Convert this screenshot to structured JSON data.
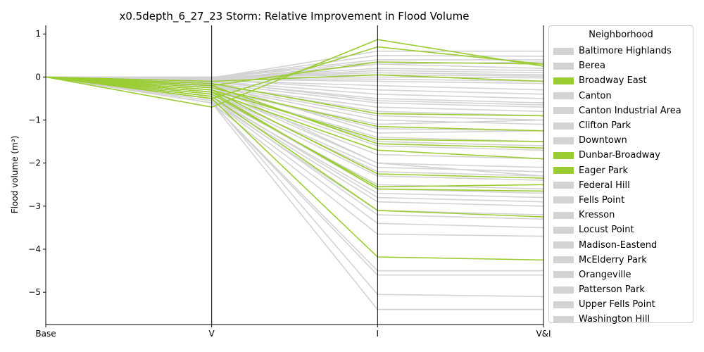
{
  "chart_data": {
    "type": "line",
    "title": "x0.5depth_6_27_23 Storm: Relative Improvement in Flood Volume",
    "ylabel": "Flood volume (m³)",
    "xlabel": "",
    "categories": [
      "Base",
      "V",
      "I",
      "V&I"
    ],
    "ylim": [
      -5.75,
      1.2
    ],
    "yticks": [
      1,
      0,
      -1,
      -2,
      -3,
      -4,
      -5
    ],
    "ytick_labels": [
      "1",
      "0",
      "−1",
      "−2",
      "−3",
      "−4",
      "−5"
    ],
    "grid": false,
    "legend": {
      "title": "Neighborhood",
      "placement": "outside-right",
      "entries": [
        {
          "name": "Baltimore Highlands",
          "color": "#d3d3d3"
        },
        {
          "name": "Berea",
          "color": "#d3d3d3"
        },
        {
          "name": "Broadway East",
          "color": "#9acd32"
        },
        {
          "name": "Canton",
          "color": "#d3d3d3"
        },
        {
          "name": "Canton Industrial Area",
          "color": "#d3d3d3"
        },
        {
          "name": "Clifton Park",
          "color": "#d3d3d3"
        },
        {
          "name": "Downtown",
          "color": "#d3d3d3"
        },
        {
          "name": "Dunbar-Broadway",
          "color": "#9acd32"
        },
        {
          "name": "Eager Park",
          "color": "#9acd32"
        },
        {
          "name": "Federal Hill",
          "color": "#d3d3d3"
        },
        {
          "name": "Fells Point",
          "color": "#d3d3d3"
        },
        {
          "name": "Kresson",
          "color": "#d3d3d3"
        },
        {
          "name": "Locust Point",
          "color": "#d3d3d3"
        },
        {
          "name": "Madison-Eastend",
          "color": "#d3d3d3"
        },
        {
          "name": "McElderry Park",
          "color": "#d3d3d3"
        },
        {
          "name": "Orangeville",
          "color": "#d3d3d3"
        },
        {
          "name": "Patterson Park",
          "color": "#d3d3d3"
        },
        {
          "name": "Upper Fells Point",
          "color": "#d3d3d3"
        },
        {
          "name": "Washington Hill",
          "color": "#d3d3d3"
        }
      ]
    },
    "colors": {
      "highlight": "#9acd32",
      "other": "#d3d3d3"
    },
    "series_gray": [
      [
        0,
        -0.02,
        0.6,
        0.6
      ],
      [
        0,
        -0.03,
        0.5,
        0.48
      ],
      [
        0,
        -0.01,
        0.4,
        0.4
      ],
      [
        0,
        -0.02,
        0.35,
        0.3
      ],
      [
        0,
        -0.05,
        0.3,
        0.2
      ],
      [
        0,
        -0.02,
        0.2,
        0.15
      ],
      [
        0,
        -0.03,
        0.15,
        0.1
      ],
      [
        0,
        -0.01,
        0.1,
        0.05
      ],
      [
        0,
        0,
        0.05,
        0.02
      ],
      [
        0,
        -0.02,
        0,
        -0.02
      ],
      [
        0,
        -0.04,
        -0.05,
        -0.1
      ],
      [
        0,
        -0.05,
        -0.1,
        -0.15
      ],
      [
        0,
        -0.08,
        -0.2,
        -0.3
      ],
      [
        0,
        -0.06,
        -0.3,
        -0.4
      ],
      [
        0,
        -0.1,
        -0.4,
        -0.5
      ],
      [
        0,
        -0.12,
        -0.5,
        -0.6
      ],
      [
        0,
        -0.1,
        -0.55,
        -0.65
      ],
      [
        0,
        -0.15,
        -0.6,
        -0.7
      ],
      [
        0,
        -0.2,
        -0.7,
        -0.8
      ],
      [
        0,
        -0.18,
        -0.8,
        -0.9
      ],
      [
        0,
        -0.2,
        -0.9,
        -1.0
      ],
      [
        0,
        -0.22,
        -1.0,
        -1.1
      ],
      [
        0,
        -0.25,
        -1.2,
        -1.25
      ],
      [
        0,
        -0.3,
        -1.4,
        -1.5
      ],
      [
        0,
        -0.25,
        -1.5,
        -1.6
      ],
      [
        0,
        -0.3,
        -1.6,
        -1.7
      ],
      [
        0,
        -0.35,
        -1.8,
        -1.9
      ],
      [
        0,
        -0.3,
        -2.0,
        -2.1
      ],
      [
        0,
        -0.4,
        -2.1,
        -2.2
      ],
      [
        0,
        -0.35,
        -2.2,
        -2.3
      ],
      [
        0,
        -0.4,
        -2.3,
        -2.4
      ],
      [
        0,
        -0.45,
        -2.5,
        -2.6
      ],
      [
        0,
        -0.4,
        -2.6,
        -2.7
      ],
      [
        0,
        -0.5,
        -2.7,
        -2.8
      ],
      [
        0,
        -0.45,
        -2.8,
        -2.9
      ],
      [
        0,
        -0.5,
        -2.9,
        -3.0
      ],
      [
        0,
        -0.55,
        -3.1,
        -3.2
      ],
      [
        0,
        -0.5,
        -3.2,
        -3.3
      ],
      [
        0,
        -0.55,
        -3.4,
        -3.5
      ],
      [
        0,
        -0.6,
        -3.65,
        -3.7
      ],
      [
        0,
        -0.6,
        -4.5,
        -4.5
      ],
      [
        0,
        -0.6,
        -4.6,
        -4.6
      ],
      [
        0,
        -0.55,
        -5.05,
        -5.1
      ],
      [
        0,
        -0.6,
        -5.4,
        -5.4
      ],
      [
        0,
        -0.3,
        -1.1,
        -1.0
      ],
      [
        0,
        -0.2,
        -2.0,
        -2.3
      ],
      [
        0,
        -0.15,
        -1.3,
        -1.25
      ],
      [
        0,
        -0.1,
        0.3,
        0.35
      ]
    ],
    "series_green": [
      [
        0,
        -0.7,
        0.87,
        0.25
      ],
      [
        0,
        -0.5,
        0.7,
        0.3
      ],
      [
        0,
        -0.2,
        0.35,
        0.3
      ],
      [
        0,
        -0.1,
        0.05,
        -0.1
      ],
      [
        0,
        -0.15,
        -0.85,
        -0.9
      ],
      [
        0,
        -0.25,
        -1.15,
        -1.25
      ],
      [
        0,
        -0.3,
        -1.45,
        -1.5
      ],
      [
        0,
        -0.2,
        -1.55,
        -1.65
      ],
      [
        0,
        -0.35,
        -1.7,
        -1.9
      ],
      [
        0,
        -0.3,
        -2.25,
        -2.35
      ],
      [
        0,
        -0.4,
        -2.55,
        -2.5
      ],
      [
        0,
        -0.35,
        -2.6,
        -2.65
      ],
      [
        0,
        -0.45,
        -3.1,
        -3.25
      ],
      [
        0,
        -0.5,
        -4.18,
        -4.25
      ]
    ]
  }
}
